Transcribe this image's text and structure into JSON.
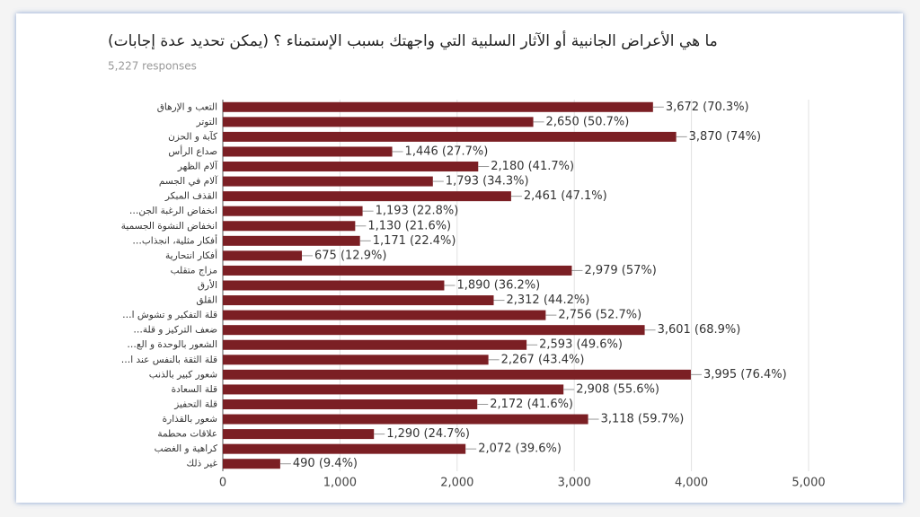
{
  "chart_data": {
    "type": "bar",
    "orientation": "horizontal",
    "title": "ما هي الأعراض الجانبية أو الآثار السلبية التي واجهتك بسبب الإستمناء ؟ (يمكن تحديد عدة إجابات)",
    "subtitle": "5,227 responses",
    "categories": [
      "التعب و الإرهاق",
      "التوتر",
      "كآبة و الحزن",
      "صداع الرأس",
      "آلام الظهر",
      "آلام في الجسم",
      "القذف المبكر",
      "انخفاض الرغبة الجن…",
      "انخفاض النشوة الجسمية",
      "أفكار مثلية، انجذاب…",
      "أفكار انتحارية",
      "مزاج متقلب",
      "الأرق",
      "القلق",
      "قلة التفكير و تشوش ا…",
      "ضعف التركيز و قلة…",
      "الشعور بالوحدة و الع…",
      "قلة الثقة بالنفس عند ا…",
      "شعور كبير بالذنب",
      "قلة السعادة",
      "قلة التحفيز",
      "شعور بالقذارة",
      "علاقات محطمة",
      "كراهية و الغضب",
      "غير ذلك"
    ],
    "values": [
      3672,
      2650,
      3870,
      1446,
      2180,
      1793,
      2461,
      1193,
      1130,
      1171,
      675,
      2979,
      1890,
      2312,
      2756,
      3601,
      2593,
      2267,
      3995,
      2908,
      2172,
      3118,
      1290,
      2072,
      490
    ],
    "value_labels": [
      "3,672 (70.3%)",
      "2,650 (50.7%)",
      "3,870 (74%)",
      "1,446 (27.7%)",
      "2,180 (41.7%)",
      "1,793 (34.3%)",
      "2,461 (47.1%)",
      "1,193 (22.8%)",
      "1,130 (21.6%)",
      "1,171 (22.4%)",
      "675 (12.9%)",
      "2,979 (57%)",
      "1,890 (36.2%)",
      "2,312 (44.2%)",
      "2,756 (52.7%)",
      "3,601 (68.9%)",
      "2,593 (49.6%)",
      "2,267 (43.4%)",
      "3,995 (76.4%)",
      "2,908 (55.6%)",
      "2,172 (41.6%)",
      "3,118 (59.7%)",
      "1,290 (24.7%)",
      "2,072 (39.6%)",
      "490 (9.4%)"
    ],
    "color": "#7b1f24",
    "xlim": [
      0,
      5000
    ],
    "xticks": [
      0,
      {
        "value": 1000,
        "label": "1,000"
      },
      {
        "value": 2000,
        "label": "2,000"
      },
      {
        "value": 3000,
        "label": "3,000"
      },
      {
        "value": 4000,
        "label": "4,000"
      },
      {
        "value": 5000,
        "label": "5,000"
      }
    ],
    "grid": true
  }
}
